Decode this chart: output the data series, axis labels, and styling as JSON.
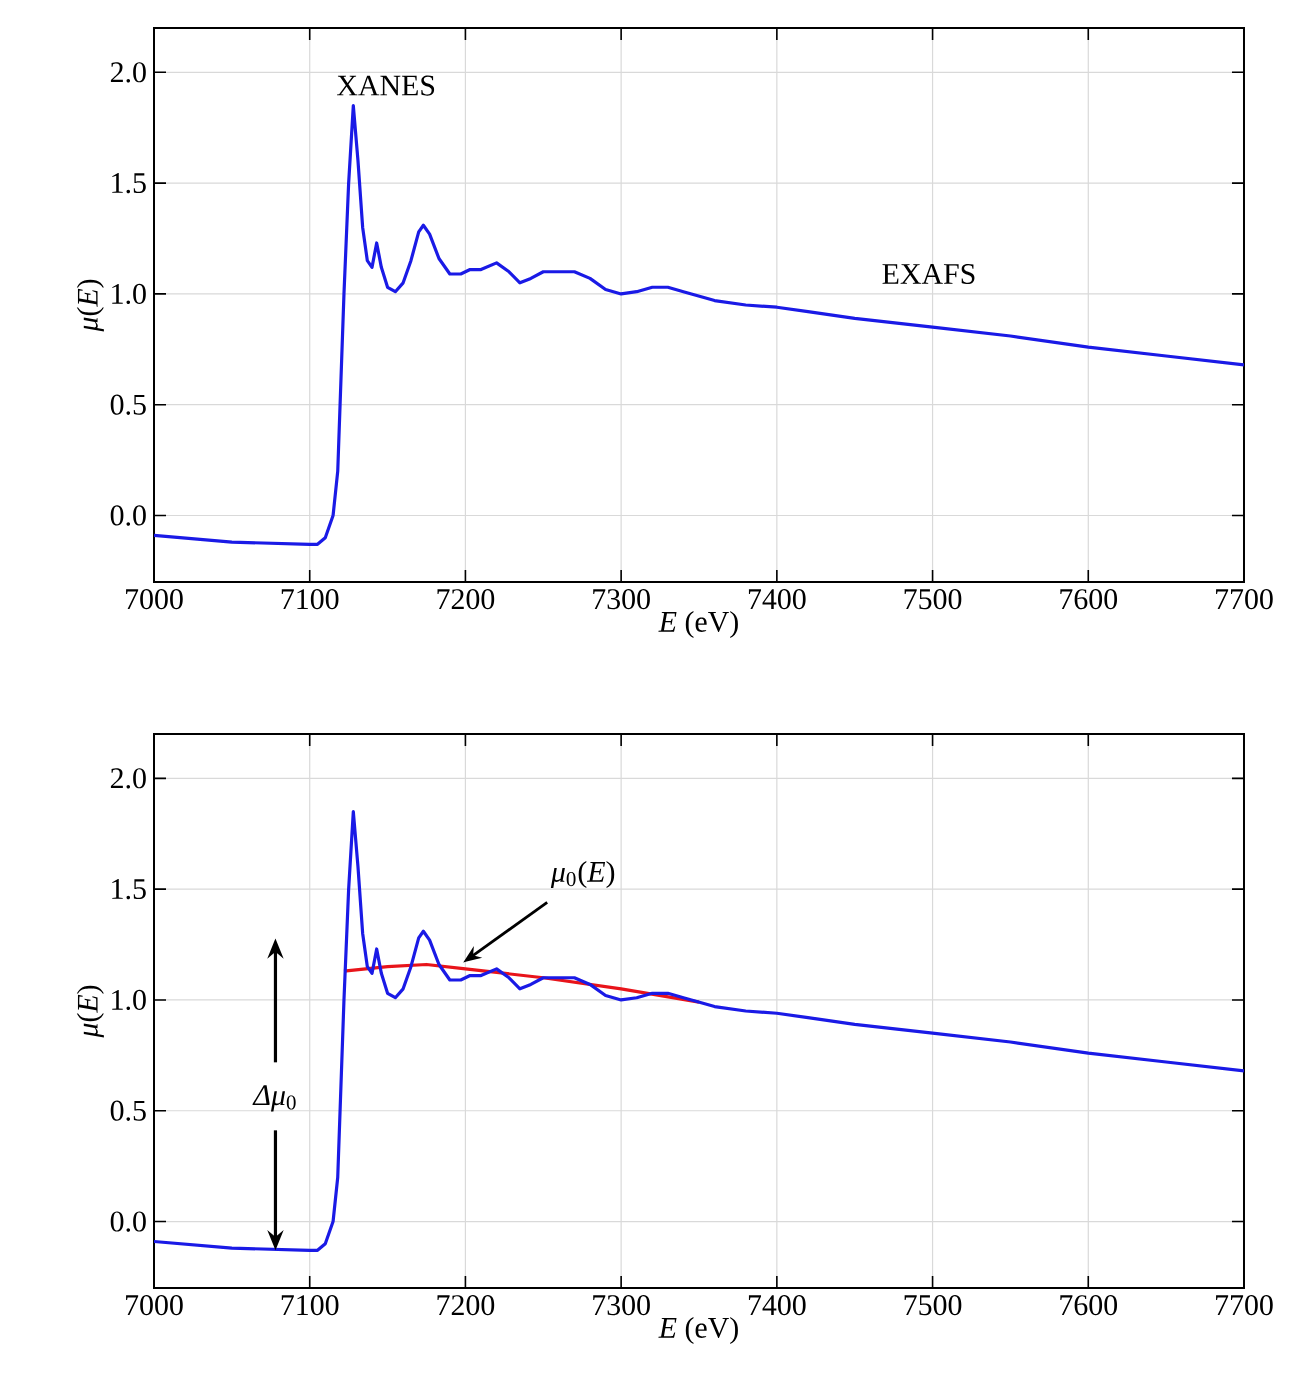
{
  "chart_data": [
    {
      "type": "line",
      "xlabel": "*E* (eV)",
      "ylabel": "*μ*(*E*)",
      "xlim": [
        7000,
        7700
      ],
      "ylim": [
        -0.3,
        2.2
      ],
      "xticks": [
        7000,
        7100,
        7200,
        7300,
        7400,
        7500,
        7600,
        7700
      ],
      "yticks": [
        {
          "value": 0,
          "label": "0.0"
        },
        {
          "value": 0.5,
          "label": "0.5"
        },
        {
          "value": 1,
          "label": "1.0"
        },
        {
          "value": 1.5,
          "label": "1.5"
        },
        {
          "value": 2,
          "label": "2.0"
        }
      ],
      "grid": true,
      "marker": "none",
      "line_style": "solid",
      "series": [
        {
          "color": "#1a1ae6",
          "x": [
            7000,
            7050,
            7100,
            7105,
            7110,
            7115,
            7118,
            7122,
            7125,
            7128,
            7131,
            7134,
            7137,
            7140,
            7143,
            7146,
            7150,
            7155,
            7160,
            7165,
            7170,
            7173,
            7177,
            7183,
            7190,
            7197,
            7203,
            7210,
            7220,
            7228,
            7235,
            7242,
            7250,
            7260,
            7270,
            7280,
            7290,
            7300,
            7310,
            7320,
            7330,
            7340,
            7360,
            7380,
            7400,
            7420,
            7450,
            7500,
            7550,
            7600,
            7650,
            7700
          ],
          "values": [
            -0.09,
            -0.12,
            -0.13,
            -0.13,
            -0.1,
            0.0,
            0.2,
            1.0,
            1.5,
            1.85,
            1.6,
            1.3,
            1.15,
            1.12,
            1.23,
            1.12,
            1.03,
            1.01,
            1.05,
            1.15,
            1.28,
            1.31,
            1.27,
            1.16,
            1.09,
            1.09,
            1.11,
            1.11,
            1.14,
            1.1,
            1.05,
            1.07,
            1.1,
            1.1,
            1.1,
            1.07,
            1.02,
            1.0,
            1.01,
            1.03,
            1.03,
            1.01,
            0.97,
            0.95,
            0.94,
            0.92,
            0.89,
            0.85,
            0.81,
            0.76,
            0.72,
            0.68
          ]
        }
      ],
      "annotations": [
        "XANES",
        "EXAFS"
      ]
    },
    {
      "type": "line",
      "xlabel": "*E* (eV)",
      "ylabel": "*μ*(*E*)",
      "xlim": [
        7000,
        7700
      ],
      "ylim": [
        -0.3,
        2.2
      ],
      "xticks": [
        7000,
        7100,
        7200,
        7300,
        7400,
        7500,
        7600,
        7700
      ],
      "yticks": [
        {
          "value": 0,
          "label": "0.0"
        },
        {
          "value": 0.5,
          "label": "0.5"
        },
        {
          "value": 1,
          "label": "1.0"
        },
        {
          "value": 1.5,
          "label": "1.5"
        },
        {
          "value": 2,
          "label": "2.0"
        }
      ],
      "grid": true,
      "marker": "none",
      "line_style": "solid",
      "series": [
        {
          "color": "#e8141a",
          "x": [
            7122,
            7150,
            7175,
            7200,
            7250,
            7300,
            7350
          ],
          "values": [
            1.13,
            1.15,
            1.16,
            1.14,
            1.1,
            1.05,
            0.99
          ]
        },
        {
          "color": "#1a1ae6",
          "x": [
            7000,
            7050,
            7100,
            7105,
            7110,
            7115,
            7118,
            7122,
            7125,
            7128,
            7131,
            7134,
            7137,
            7140,
            7143,
            7146,
            7150,
            7155,
            7160,
            7165,
            7170,
            7173,
            7177,
            7183,
            7190,
            7197,
            7203,
            7210,
            7220,
            7228,
            7235,
            7242,
            7250,
            7260,
            7270,
            7280,
            7290,
            7300,
            7310,
            7320,
            7330,
            7340,
            7360,
            7380,
            7400,
            7420,
            7450,
            7500,
            7550,
            7600,
            7650,
            7700
          ],
          "values": [
            -0.09,
            -0.12,
            -0.13,
            -0.13,
            -0.1,
            0.0,
            0.2,
            1.0,
            1.5,
            1.85,
            1.6,
            1.3,
            1.15,
            1.12,
            1.23,
            1.12,
            1.03,
            1.01,
            1.05,
            1.15,
            1.28,
            1.31,
            1.27,
            1.16,
            1.09,
            1.09,
            1.11,
            1.11,
            1.14,
            1.1,
            1.05,
            1.07,
            1.1,
            1.1,
            1.1,
            1.07,
            1.02,
            1.0,
            1.01,
            1.03,
            1.03,
            1.01,
            0.97,
            0.95,
            0.94,
            0.92,
            0.89,
            0.85,
            0.81,
            0.76,
            0.72,
            0.68
          ]
        }
      ],
      "annotations": [
        {
          "text": "*μ*$_{0}$(*E*)",
          "x": 7196,
          "y": 1.16
        },
        {
          "text": "*Δμ*$_{0}$",
          "x": 7078,
          "y": -0.13
        }
      ]
    }
  ]
}
